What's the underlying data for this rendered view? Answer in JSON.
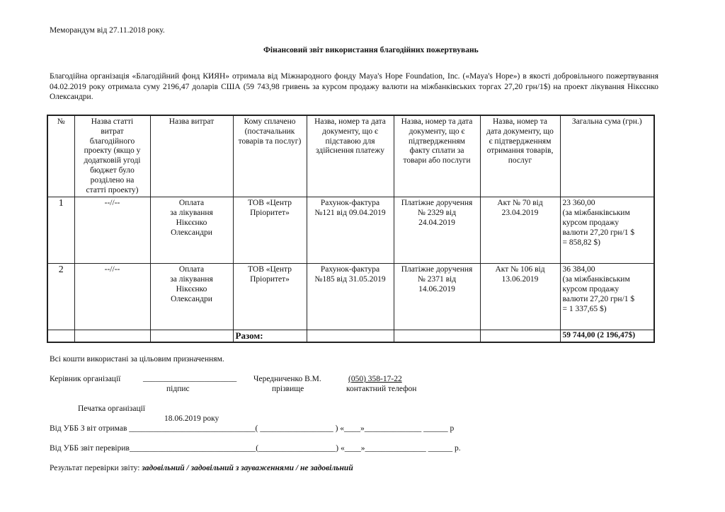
{
  "memo": "Меморандум від 27.11.2018 року.",
  "title": "Фінансовий звіт використання благодійних пожертвувань",
  "intro": "Благодійна організація «Благодійний фонд КИЯН» отримала від Міжнародного  фонду Maya's Hope Foundation, Inc. («Maya's Hope»)  в якості добровільного пожертвування  04.02.2019 року отримала суму 2196,47 доларів США (59 743,98  гривень за курсом продажу валюти на міжбанківських торгах 27,20 грн/1$) на проект лікування Нікєєнко Олександри.",
  "table": {
    "headers": [
      "№",
      "Назва статті\nвитрат\nблагодійного\nпроекту (якщо у\nдодатковій угоді\nбюджет було\nрозділено на\nстатті проекту)",
      "Назва  витрат",
      "Кому сплачено\n(постачальник\nтоварів та послуг)",
      "Назва, номер та дата\nдокументу, що є\nпідставою для\nздійснення платежу",
      "Назва, номер та дата\nдокументу, що є\nпідтвердженням\nфакту сплати за\nтовари або послуги",
      "Назва, номер та\nдата документу, що\nє підтвердженням\nотримання товарів,\nпослуг",
      "Загальна сума (грн.)"
    ],
    "rows": [
      [
        "1",
        "--//--",
        "Оплата\nза лікування\nНікєєнко\nОлександри",
        "ТОВ «Центр\nПріоритет»",
        "Рахунок-фактура\n№121 від 09.04.2019",
        "Платіжне доручення\n№ 2329 від\n24.04.2019",
        "Акт № 70 від\n23.04.2019",
        "23 360,00\n(за міжбанківським\nкурсом продажу\nвалюти  27,20 грн/1 $\n= 858,82 $)"
      ],
      [
        "2",
        "--//--",
        "Оплата\nза лікування\nНікєєнко\nОлександри",
        "ТОВ «Центр\nПріоритет»",
        "Рахунок-фактура\n№185 від 31.05.2019",
        "Платіжне доручення\n№ 2371 від\n14.06.2019",
        "Акт № 106 від\n13.06.2019",
        "36 384,00\n(за міжбанківським\nкурсом продажу\nвалюти  27,20 грн/1 $\n= 1 337,65 $)"
      ]
    ],
    "total_label": "Разом:",
    "total_value": "59 744,00 (2 196,47$)"
  },
  "footer": {
    "all_used": "Всі кошти використані за цільовим призначенням.",
    "head_label": "Керівник організації",
    "sign_line": "_______________________",
    "name": "Чередниченко В.М.",
    "phone": "(050) 358-17-22",
    "cap_sign": "підпис",
    "cap_surname": "прізвище",
    "cap_phone": "контактний телефон",
    "stamp": "Печатка організації",
    "date": "18.06.2019 року",
    "received": "Від  УББ З віт отримав _______________________________( __________________ )  «____»______________  ______ р",
    "checked": "Від  УББ звіт перевірив_______________________________(___________________) «____»_______________  ______ р.",
    "result_label": "Результат перевірки звіту:",
    "result_options": "задовільний / задовільний з зауваженнями / не задовільний"
  }
}
